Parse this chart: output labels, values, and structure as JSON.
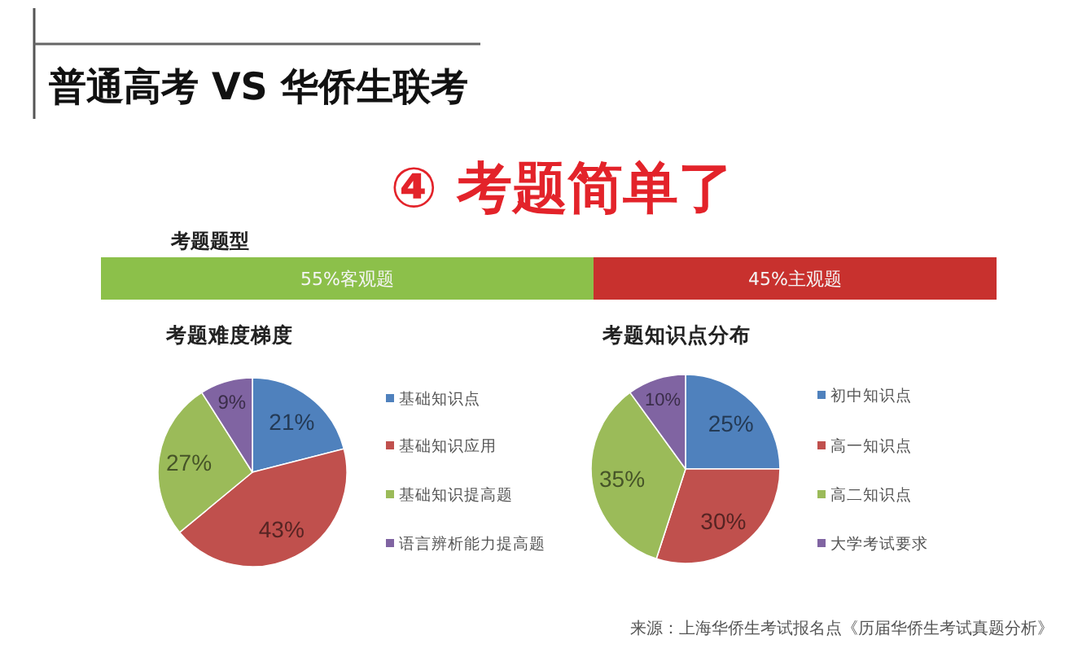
{
  "chart_data": [
    {
      "type": "other",
      "title": "普通高考 VS 华侨生联考",
      "subtitle": "④ 考题简单了"
    },
    {
      "type": "bar",
      "title": "考题题型",
      "orientation": "horizontal",
      "stacked": true,
      "categories": [
        null
      ],
      "xlim": [
        0,
        100
      ],
      "series": [
        {
          "color": "#8cc04a",
          "values": [
            55
          ],
          "value_labels": [
            "55%客观题"
          ]
        },
        {
          "color": "#c8312e",
          "values": [
            45
          ],
          "value_labels": [
            "45%主观题"
          ]
        }
      ]
    },
    {
      "type": "pie",
      "title": "考题难度梯度",
      "categories": [
        "基础知识点",
        "基础知识应用",
        "基础知识提高题",
        "语言辨析能力提高题"
      ],
      "values": [
        21,
        43,
        27,
        9
      ],
      "value_labels": [
        "21%",
        "43%",
        "27%",
        "9%"
      ],
      "colors": [
        "#4f81bd",
        "#c0504d",
        "#9bbb59",
        "#8064a2"
      ],
      "legend": "right"
    },
    {
      "type": "pie",
      "title": "考题知识点分布",
      "categories": [
        "初中知识点",
        "高一知识点",
        "高二知识点",
        "大学考试要求"
      ],
      "values": [
        25,
        30,
        35,
        10
      ],
      "value_labels": [
        "25%",
        "30%",
        "35%",
        "10%"
      ],
      "colors": [
        "#4f81bd",
        "#c0504d",
        "#9bbb59",
        "#8064a2"
      ],
      "legend": "right",
      "annotations": [
        "来源：上海华侨生考试报名点《历届华侨生考试真题分析》"
      ]
    }
  ]
}
